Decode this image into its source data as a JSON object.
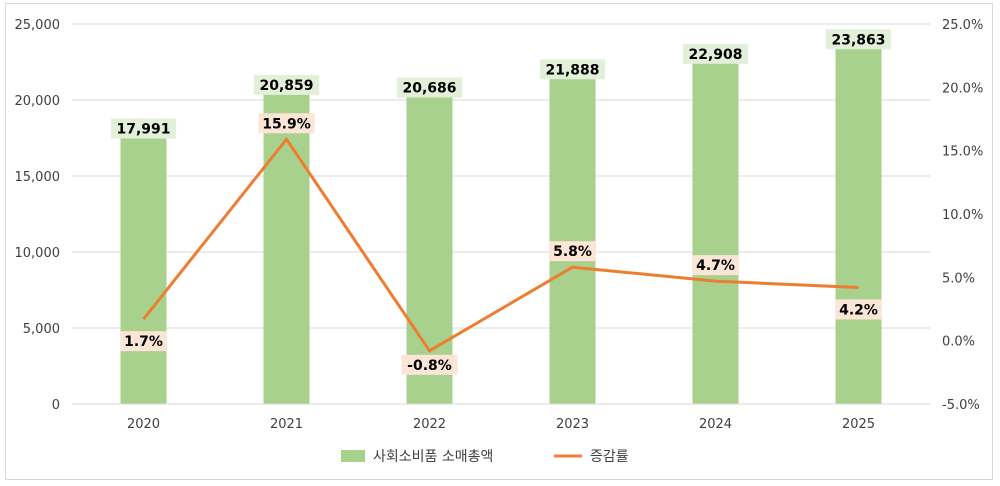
{
  "chart_data": {
    "type": "bar",
    "categories": [
      "2020",
      "2021",
      "2022",
      "2023",
      "2024",
      "2025"
    ],
    "series": [
      {
        "name": "사회소비품 소매총액",
        "type": "bar",
        "axis": "left",
        "values": [
          17991,
          20859,
          20686,
          21888,
          22908,
          23863
        ],
        "labels": [
          "17,991",
          "20,859",
          "20,686",
          "21,888",
          "22,908",
          "23,863"
        ],
        "color": "#a9d18e"
      },
      {
        "name": "증감률",
        "type": "line",
        "axis": "right",
        "values": [
          1.7,
          15.9,
          -0.8,
          5.8,
          4.7,
          4.2
        ],
        "labels": [
          "1.7%",
          "15.9%",
          "-0.8%",
          "5.8%",
          "4.7%",
          "4.2%"
        ],
        "color": "#ed7d31"
      }
    ],
    "y_left": {
      "range": [
        0,
        25000
      ],
      "ticks": [
        0,
        5000,
        10000,
        15000,
        20000,
        25000
      ],
      "tick_labels": [
        "0",
        "5,000",
        "10,000",
        "15,000",
        "20,000",
        "25,000"
      ]
    },
    "y_right": {
      "range": [
        -5,
        25
      ],
      "ticks": [
        -5,
        0,
        5,
        10,
        15,
        20,
        25
      ],
      "tick_labels": [
        "-5.0%",
        "0.0%",
        "5.0%",
        "10.0%",
        "15.0%",
        "20.0%",
        "25.0%"
      ]
    },
    "grid": true,
    "legend_position": "bottom",
    "colors": {
      "bar_label_bg": "#e2efd9",
      "line_label_bg": "#fbe5d6",
      "gridline": "#d9d9d9"
    }
  }
}
